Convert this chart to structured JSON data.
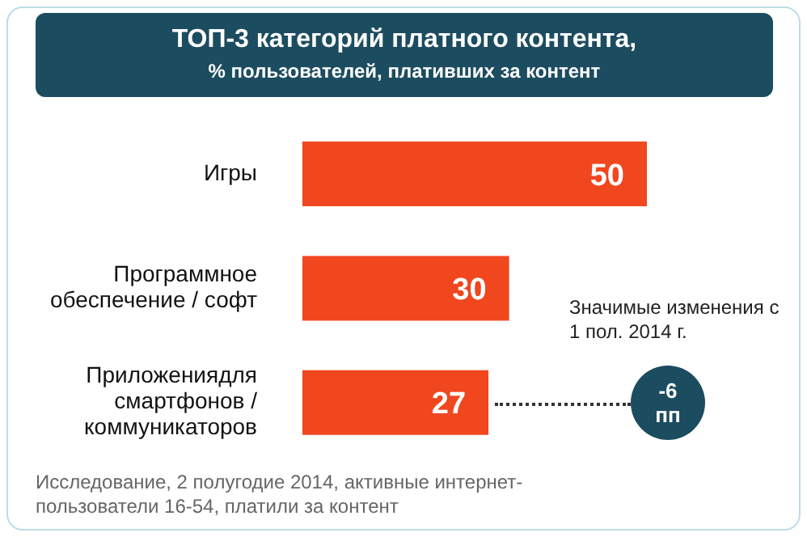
{
  "chart_data": {
    "type": "bar",
    "orientation": "horizontal",
    "title": "ТОП-3 категорий платного контента,",
    "subtitle": "% пользователей, плативших за контент",
    "categories": [
      "Игры",
      "Программное обеспечение / софт",
      "Приложениядля смартфонов / коммуникаторов"
    ],
    "values": [
      50,
      30,
      27
    ],
    "color": "#f0471f",
    "data_labels": true,
    "tick_labels": "y",
    "annotations": [
      "Значимые изменения с 1 пол. 2014 г.",
      "-6 пп",
      "Исследование, 2 полугодие 2014, активные интернет-пользователи 16-54, платили за контент"
    ]
  }
}
